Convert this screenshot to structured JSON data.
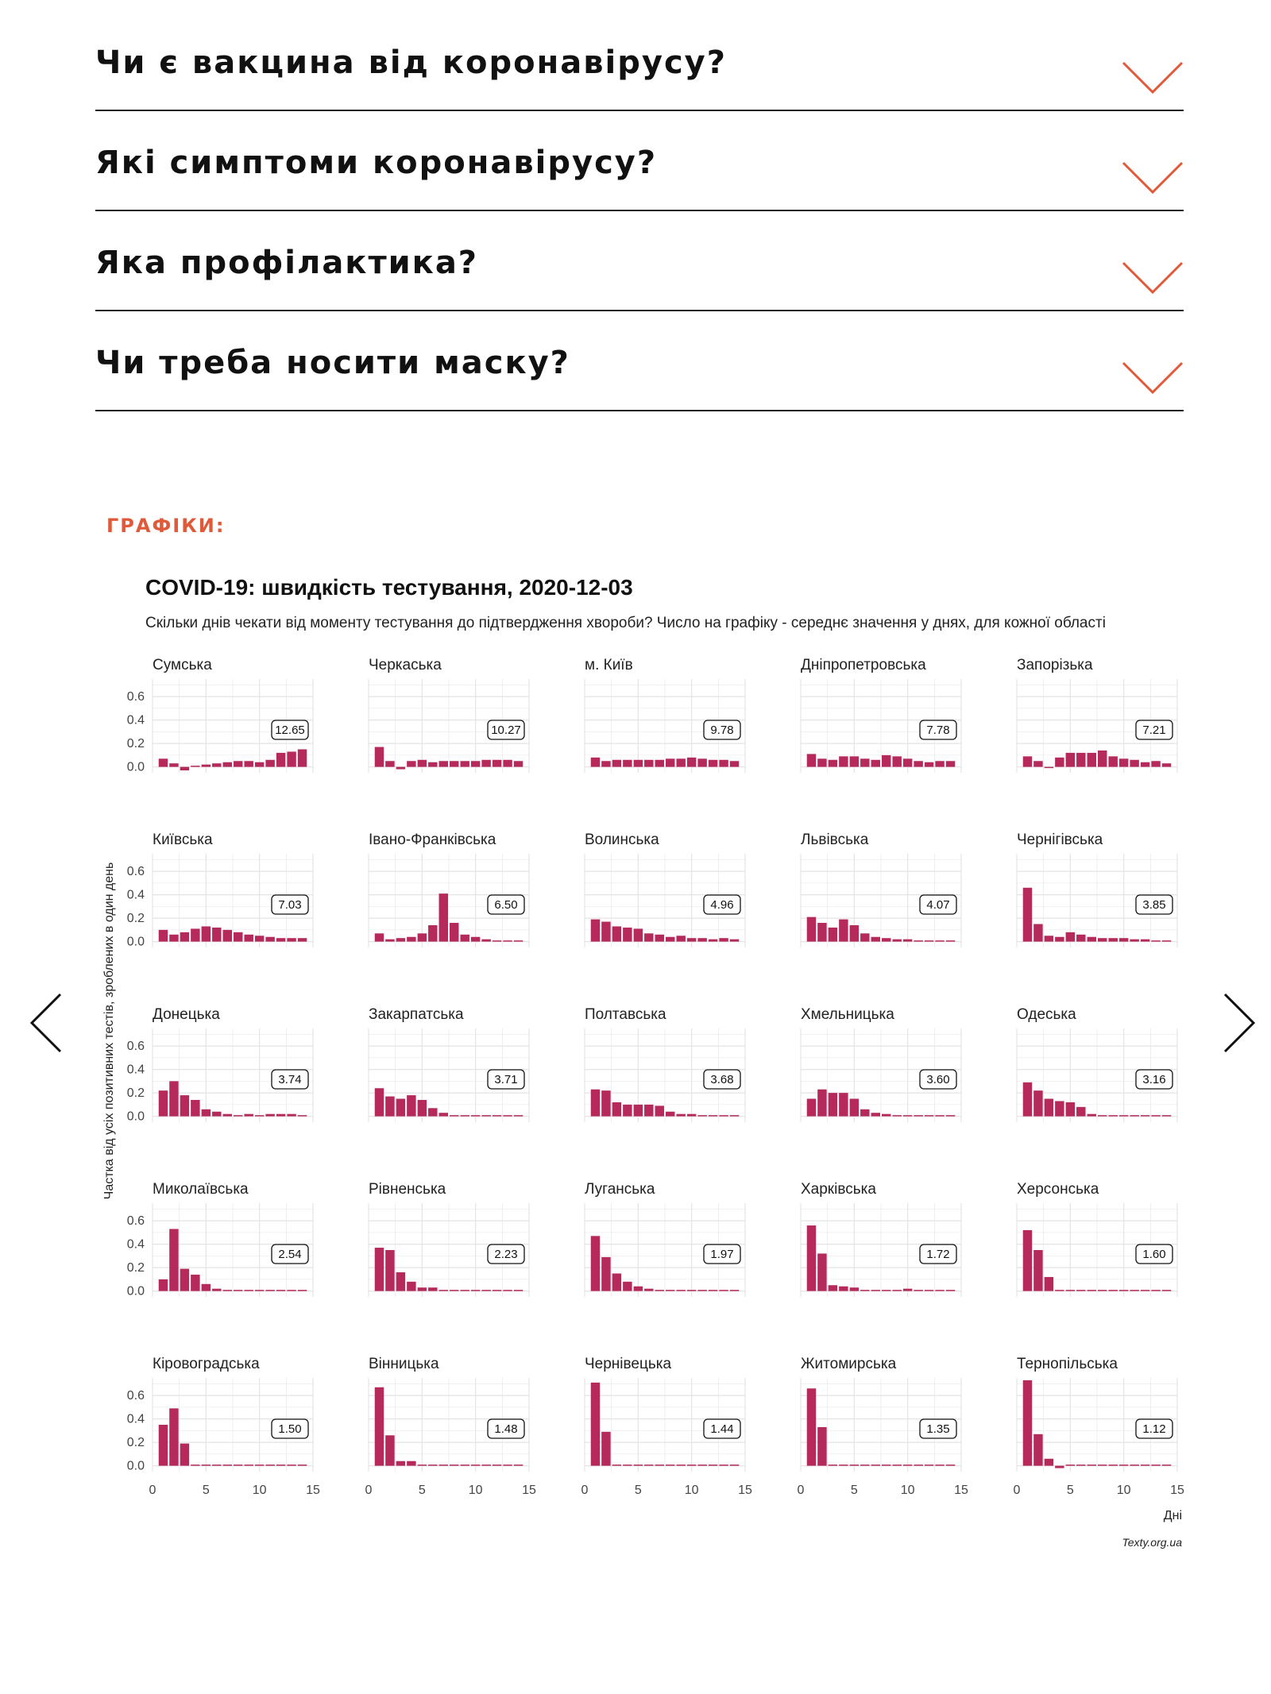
{
  "faq": {
    "items": [
      {
        "question": "Чи є вакцина від коронавірусу?"
      },
      {
        "question": "Які симптоми коронавірусу?"
      },
      {
        "question": "Яка профілактика?"
      },
      {
        "question": "Чи треба носити маску?"
      }
    ]
  },
  "section_label": "ГРАФІКИ:",
  "colors": {
    "accent": "#e05a3a",
    "bar": "#b52a5b",
    "grid": "#e4e4e4",
    "text": "#111111"
  },
  "icons": {
    "chevron": "chevron-down-icon",
    "prev": "chevron-left-icon",
    "next": "chevron-right-icon"
  },
  "chart_data": {
    "type": "bar",
    "title": "COVID-19: швидкість тестування, 2020-12-03",
    "subtitle": "Скільки днів чекати від моменту тестування до підтвердження хвороби? Число на графіку - середнє значення у днях, для кожної області",
    "ylabel": "Частка від усіх позитивних тестів, зроблених в один день",
    "xlabel": "Дні",
    "source": "Texty.org.ua",
    "ylim": [
      -0.05,
      0.75
    ],
    "xlim": [
      0,
      15
    ],
    "yticks": [
      "0.0",
      "0.2",
      "0.4",
      "0.6"
    ],
    "xticks": [
      "0",
      "5",
      "10",
      "15"
    ],
    "x": [
      1,
      2,
      3,
      4,
      5,
      6,
      7,
      8,
      9,
      10,
      11,
      12,
      13,
      14
    ],
    "panels": [
      {
        "name": "Сумська",
        "mean": "12.65",
        "values": [
          0.07,
          0.03,
          -0.03,
          0.01,
          0.02,
          0.03,
          0.04,
          0.05,
          0.05,
          0.04,
          0.06,
          0.12,
          0.13,
          0.15
        ]
      },
      {
        "name": "Черкаська",
        "mean": "10.27",
        "values": [
          0.17,
          0.05,
          -0.02,
          0.05,
          0.06,
          0.04,
          0.05,
          0.05,
          0.05,
          0.05,
          0.06,
          0.06,
          0.06,
          0.05
        ]
      },
      {
        "name": "м. Київ",
        "mean": "9.78",
        "values": [
          0.08,
          0.05,
          0.06,
          0.06,
          0.06,
          0.06,
          0.06,
          0.07,
          0.07,
          0.08,
          0.07,
          0.06,
          0.06,
          0.05
        ]
      },
      {
        "name": "Дніпропетровська",
        "mean": "7.78",
        "values": [
          0.11,
          0.07,
          0.06,
          0.09,
          0.09,
          0.07,
          0.06,
          0.1,
          0.09,
          0.07,
          0.05,
          0.04,
          0.05,
          0.05
        ]
      },
      {
        "name": "Запорізька",
        "mean": "7.21",
        "values": [
          0.09,
          0.05,
          -0.01,
          0.08,
          0.12,
          0.12,
          0.12,
          0.14,
          0.09,
          0.07,
          0.06,
          0.04,
          0.05,
          0.03
        ]
      },
      {
        "name": "Київська",
        "mean": "7.03",
        "values": [
          0.1,
          0.06,
          0.08,
          0.11,
          0.13,
          0.12,
          0.1,
          0.08,
          0.06,
          0.05,
          0.04,
          0.03,
          0.03,
          0.03
        ]
      },
      {
        "name": "Івано-Франківська",
        "mean": "6.50",
        "values": [
          0.07,
          0.02,
          0.03,
          0.04,
          0.07,
          0.14,
          0.41,
          0.16,
          0.06,
          0.04,
          0.02,
          0.01,
          0.01,
          0.01
        ]
      },
      {
        "name": "Волинська",
        "mean": "4.96",
        "values": [
          0.19,
          0.17,
          0.13,
          0.12,
          0.11,
          0.07,
          0.06,
          0.04,
          0.05,
          0.03,
          0.03,
          0.02,
          0.03,
          0.02
        ]
      },
      {
        "name": "Львівська",
        "mean": "4.07",
        "values": [
          0.21,
          0.16,
          0.12,
          0.19,
          0.14,
          0.07,
          0.04,
          0.03,
          0.02,
          0.02,
          0.01,
          0.01,
          0.01,
          0.01
        ]
      },
      {
        "name": "Чернігівська",
        "mean": "3.85",
        "values": [
          0.46,
          0.15,
          0.05,
          0.04,
          0.08,
          0.06,
          0.04,
          0.03,
          0.03,
          0.03,
          0.02,
          0.02,
          0.01,
          0.01
        ]
      },
      {
        "name": "Донецька",
        "mean": "3.74",
        "values": [
          0.22,
          0.3,
          0.18,
          0.14,
          0.06,
          0.04,
          0.02,
          0.01,
          0.02,
          0.01,
          0.02,
          0.02,
          0.02,
          0.01
        ]
      },
      {
        "name": "Закарпатська",
        "mean": "3.71",
        "values": [
          0.24,
          0.17,
          0.15,
          0.18,
          0.14,
          0.07,
          0.03,
          0.01,
          0.01,
          0.01,
          0.01,
          0.01,
          0.01,
          0.01
        ]
      },
      {
        "name": "Полтавська",
        "mean": "3.68",
        "values": [
          0.23,
          0.22,
          0.12,
          0.1,
          0.1,
          0.1,
          0.09,
          0.04,
          0.02,
          0.02,
          0.01,
          0.01,
          0.01,
          0.01
        ]
      },
      {
        "name": "Хмельницька",
        "mean": "3.60",
        "values": [
          0.15,
          0.23,
          0.2,
          0.2,
          0.15,
          0.06,
          0.03,
          0.02,
          0.01,
          0.01,
          0.01,
          0.01,
          0.01,
          0.01
        ]
      },
      {
        "name": "Одеська",
        "mean": "3.16",
        "values": [
          0.29,
          0.22,
          0.15,
          0.13,
          0.12,
          0.08,
          0.02,
          0.01,
          0.01,
          0.01,
          0.01,
          0.01,
          0.01,
          0.01
        ]
      },
      {
        "name": "Миколаївська",
        "mean": "2.54",
        "values": [
          0.1,
          0.53,
          0.19,
          0.14,
          0.06,
          0.02,
          0.01,
          0.01,
          0.01,
          0.01,
          0.01,
          0.01,
          0.01,
          0.01
        ]
      },
      {
        "name": "Рівненська",
        "mean": "2.23",
        "values": [
          0.37,
          0.35,
          0.16,
          0.08,
          0.03,
          0.03,
          0.01,
          0.01,
          0.01,
          0.01,
          0.01,
          0.01,
          0.01,
          0.01
        ]
      },
      {
        "name": "Луганська",
        "mean": "1.97",
        "values": [
          0.47,
          0.29,
          0.15,
          0.08,
          0.04,
          0.02,
          0.01,
          0.01,
          0.01,
          0.01,
          0.01,
          0.01,
          0.01,
          0.01
        ]
      },
      {
        "name": "Харківська",
        "mean": "1.72",
        "values": [
          0.56,
          0.32,
          0.05,
          0.04,
          0.03,
          0.01,
          0.01,
          0.01,
          0.01,
          0.02,
          0.01,
          0.01,
          0.01,
          0.01
        ]
      },
      {
        "name": "Херсонська",
        "mean": "1.60",
        "values": [
          0.52,
          0.35,
          0.12,
          0.01,
          0.01,
          0.01,
          0.01,
          0.01,
          0.01,
          0.01,
          0.01,
          0.01,
          0.01,
          0.01
        ]
      },
      {
        "name": "Кіровоградська",
        "mean": "1.50",
        "values": [
          0.35,
          0.49,
          0.19,
          0.01,
          0.01,
          0.01,
          0.01,
          0.01,
          0.01,
          0.01,
          0.01,
          0.01,
          0.01,
          0.01
        ]
      },
      {
        "name": "Вінницька",
        "mean": "1.48",
        "values": [
          0.67,
          0.26,
          0.04,
          0.04,
          0.01,
          0.01,
          0.01,
          0.01,
          0.01,
          0.01,
          0.01,
          0.01,
          0.01,
          0.01
        ]
      },
      {
        "name": "Чернівецька",
        "mean": "1.44",
        "values": [
          0.71,
          0.29,
          0.01,
          0.01,
          0.01,
          0.01,
          0.01,
          0.01,
          0.01,
          0.01,
          0.01,
          0.01,
          0.01,
          0.01
        ]
      },
      {
        "name": "Житомирська",
        "mean": "1.35",
        "values": [
          0.66,
          0.33,
          0.01,
          0.01,
          0.01,
          0.01,
          0.01,
          0.01,
          0.01,
          0.01,
          0.01,
          0.01,
          0.01,
          0.01
        ]
      },
      {
        "name": "Тернопільська",
        "mean": "1.12",
        "values": [
          0.73,
          0.27,
          0.06,
          -0.02,
          0.01,
          0.01,
          0.01,
          0.01,
          0.01,
          0.01,
          0.01,
          0.01,
          0.01,
          0.01
        ]
      }
    ]
  }
}
